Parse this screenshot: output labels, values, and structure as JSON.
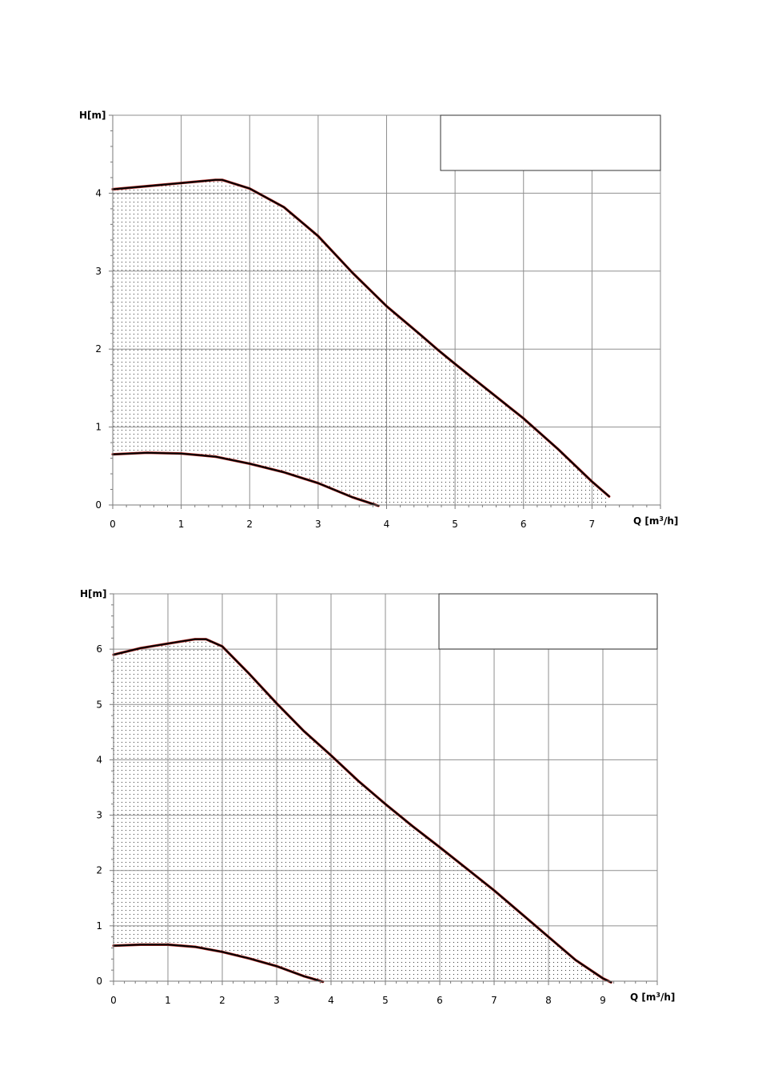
{
  "chart_data": [
    {
      "type": "area",
      "title": "",
      "xlabel": "Q [m",
      "xlabel_sup": "3",
      "xlabel_tail": "/h]",
      "ylabel": "H[m]",
      "xlim": [
        0,
        8
      ],
      "ylim": [
        0,
        5
      ],
      "x_ticks": [
        "0",
        "1",
        "2",
        "3",
        "4",
        "5",
        "6",
        "7"
      ],
      "y_ticks": [
        "0",
        "1",
        "2",
        "3",
        "4"
      ],
      "grid": true,
      "fill_pattern": "dotted",
      "legend_box": "top-right, empty",
      "series": [
        {
          "role": "max-curve",
          "color": "#000000",
          "points": [
            [
              0,
              4.05
            ],
            [
              0.5,
              4.09
            ],
            [
              1.0,
              4.13
            ],
            [
              1.5,
              4.17
            ],
            [
              1.6,
              4.17
            ],
            [
              2.0,
              4.06
            ],
            [
              2.5,
              3.82
            ],
            [
              3.0,
              3.45
            ],
            [
              3.5,
              2.98
            ],
            [
              4.0,
              2.55
            ],
            [
              4.5,
              2.18
            ],
            [
              4.75,
              1.99
            ],
            [
              5.0,
              1.81
            ],
            [
              5.5,
              1.46
            ],
            [
              6.0,
              1.11
            ],
            [
              6.5,
              0.72
            ],
            [
              7.0,
              0.3
            ],
            [
              7.25,
              0.11
            ]
          ]
        },
        {
          "role": "min-curve",
          "color": "#000000",
          "points": [
            [
              0,
              0.65
            ],
            [
              0.5,
              0.67
            ],
            [
              1.0,
              0.66
            ],
            [
              1.5,
              0.62
            ],
            [
              2.0,
              0.53
            ],
            [
              2.5,
              0.42
            ],
            [
              3.0,
              0.28
            ],
            [
              3.5,
              0.1
            ],
            [
              3.88,
              -0.01
            ]
          ]
        }
      ]
    },
    {
      "type": "area",
      "title": "",
      "xlabel": "Q [m",
      "xlabel_sup": "3",
      "xlabel_tail": "/h]",
      "ylabel": "H[m]",
      "xlim": [
        0,
        10
      ],
      "ylim": [
        0,
        7
      ],
      "x_ticks": [
        "0",
        "1",
        "2",
        "3",
        "4",
        "5",
        "6",
        "7",
        "8",
        "9"
      ],
      "y_ticks": [
        "0",
        "1",
        "2",
        "3",
        "4",
        "5",
        "6"
      ],
      "grid": true,
      "fill_pattern": "dotted",
      "legend_box": "top-right, empty",
      "series": [
        {
          "role": "max-curve",
          "color": "#000000",
          "points": [
            [
              0,
              5.9
            ],
            [
              0.5,
              6.02
            ],
            [
              1.0,
              6.1
            ],
            [
              1.5,
              6.18
            ],
            [
              1.7,
              6.18
            ],
            [
              2.0,
              6.05
            ],
            [
              2.5,
              5.55
            ],
            [
              3.0,
              5.02
            ],
            [
              3.5,
              4.52
            ],
            [
              4.0,
              4.08
            ],
            [
              4.5,
              3.62
            ],
            [
              5.0,
              3.2
            ],
            [
              5.5,
              2.8
            ],
            [
              6.0,
              2.42
            ],
            [
              6.5,
              2.03
            ],
            [
              7.0,
              1.64
            ],
            [
              7.5,
              1.22
            ],
            [
              8.0,
              0.8
            ],
            [
              8.5,
              0.38
            ],
            [
              9.0,
              0.05
            ],
            [
              9.15,
              -0.02
            ]
          ]
        },
        {
          "role": "min-curve",
          "color": "#000000",
          "points": [
            [
              0,
              0.64
            ],
            [
              0.5,
              0.66
            ],
            [
              1.0,
              0.66
            ],
            [
              1.5,
              0.62
            ],
            [
              2.0,
              0.53
            ],
            [
              2.5,
              0.41
            ],
            [
              3.0,
              0.27
            ],
            [
              3.5,
              0.09
            ],
            [
              3.85,
              -0.01
            ]
          ]
        }
      ]
    }
  ]
}
